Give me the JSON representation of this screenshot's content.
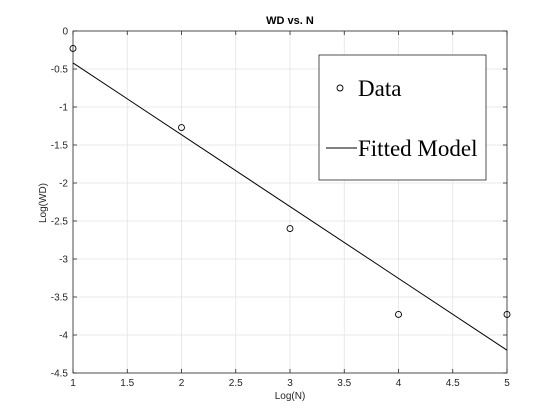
{
  "chart_data": {
    "type": "scatter",
    "title": "WD vs. N",
    "xlabel": "Log(N)",
    "ylabel": "Log(WD)",
    "xlim": [
      1,
      5
    ],
    "ylim": [
      -4.5,
      0
    ],
    "x_ticks": [
      "1",
      "1.5",
      "2",
      "2.5",
      "3",
      "3.5",
      "4",
      "4.5",
      "5"
    ],
    "y_ticks": [
      "0",
      "-0.5",
      "-1",
      "-1.5",
      "-2",
      "-2.5",
      "-3",
      "-3.5",
      "-4",
      "-4.5"
    ],
    "grid": true,
    "legend_position": "top-right",
    "series": [
      {
        "name": "Data",
        "kind": "scatter",
        "marker": "open-circle",
        "color": "#000000",
        "x": [
          1,
          2,
          3,
          4,
          5
        ],
        "y": [
          -0.23,
          -1.27,
          -2.6,
          -3.73,
          -3.73
        ]
      },
      {
        "name": "Fitted Model",
        "kind": "line",
        "color": "#000000",
        "x": [
          1,
          5
        ],
        "y": [
          -0.42,
          -4.2
        ]
      }
    ]
  }
}
